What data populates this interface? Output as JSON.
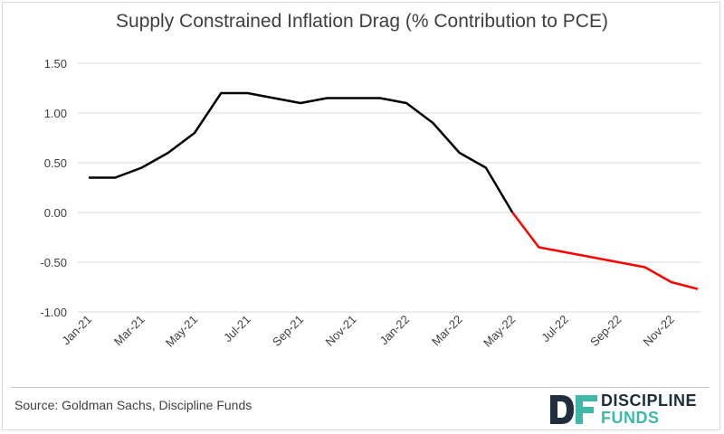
{
  "title": "Supply Constrained Inflation Drag (% Contribution to PCE)",
  "source": "Source: Goldman Sachs, Discipline Funds",
  "logo": {
    "mark": "DF",
    "line1": "DISCIPLINE",
    "line2": "FUNDS"
  },
  "colors": {
    "actual": "#000000",
    "forecast": "#ff0000",
    "grid": "#d9d9d9",
    "text": "#404040",
    "logo_dark": "#1f2d3d",
    "logo_teal": "#3fb8a9"
  },
  "chart_data": {
    "type": "line",
    "title": "Supply Constrained Inflation Drag (% Contribution to PCE)",
    "ylim": [
      -1.0,
      1.5
    ],
    "yticks": [
      "1.50",
      "1.00",
      "0.50",
      "0.00",
      "-0.50",
      "-1.00"
    ],
    "ytick_values": [
      1.5,
      1.0,
      0.5,
      0.0,
      -0.5,
      -1.0
    ],
    "grid": true,
    "x_tick_labels": [
      "Jan-21",
      "Mar-21",
      "May-21",
      "Jul-21",
      "Sep-21",
      "Nov-21",
      "Jan-22",
      "Mar-22",
      "May-22",
      "Jul-22",
      "Sep-22",
      "Nov-22"
    ],
    "months": [
      "Jan-21",
      "Feb-21",
      "Mar-21",
      "Apr-21",
      "May-21",
      "Jun-21",
      "Jul-21",
      "Aug-21",
      "Sep-21",
      "Oct-21",
      "Nov-21",
      "Dec-21",
      "Jan-22",
      "Feb-22",
      "Mar-22",
      "Apr-22",
      "May-22",
      "Jun-22",
      "Jul-22",
      "Aug-22",
      "Sep-22",
      "Oct-22",
      "Nov-22",
      "Dec-22"
    ],
    "series": [
      {
        "color": "#000000",
        "start": 0,
        "values": [
          0.35,
          0.35,
          0.45,
          0.6,
          0.8,
          1.2,
          1.2,
          1.15,
          1.1,
          1.15,
          1.15,
          1.15,
          1.1,
          0.9,
          0.6,
          0.45,
          0.0
        ]
      },
      {
        "color": "#ff0000",
        "start": 16,
        "values": [
          0.0,
          -0.35,
          -0.4,
          -0.45,
          -0.5,
          -0.55,
          -0.7,
          -0.77
        ]
      }
    ]
  }
}
